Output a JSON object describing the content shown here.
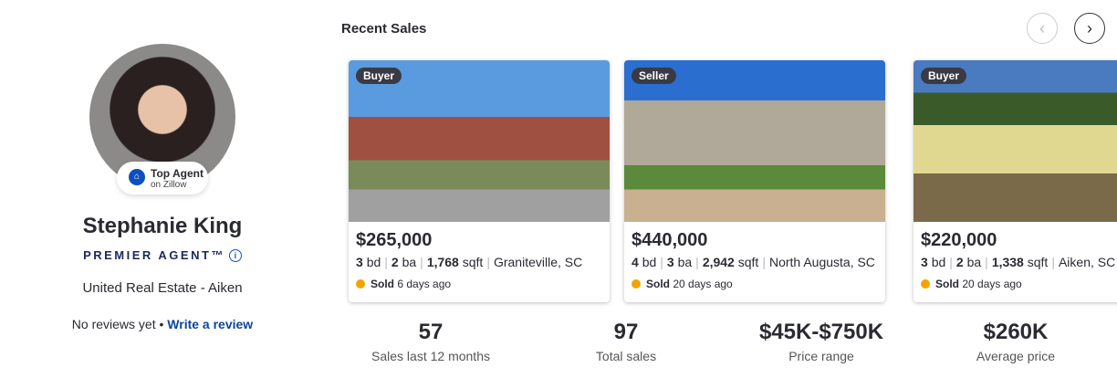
{
  "agent": {
    "badge_title": "Top Agent",
    "badge_sub": "on Zillow",
    "name": "Stephanie King",
    "premier": "PREMIER AGENT™",
    "brokerage": "United Real Estate - Aiken",
    "reviews": "No reviews yet",
    "bullet": " • ",
    "write_review": "Write a review"
  },
  "sales": {
    "title": "Recent Sales",
    "prev": "‹",
    "next": "›",
    "cards": [
      {
        "tag": "Buyer",
        "price": "$265,000",
        "bd": "3",
        "ba": "2",
        "sqft": "1,768",
        "location": "Graniteville, SC",
        "sold": "Sold",
        "when": "6 days ago"
      },
      {
        "tag": "Seller",
        "price": "$440,000",
        "bd": "4",
        "ba": "3",
        "sqft": "2,942",
        "location": "North Augusta, SC",
        "sold": "Sold",
        "when": "20 days ago"
      },
      {
        "tag": "Buyer",
        "price": "$220,000",
        "bd": "3",
        "ba": "2",
        "sqft": "1,338",
        "location": "Aiken, SC",
        "sold": "Sold",
        "when": "20 days ago"
      }
    ]
  },
  "labels": {
    "bd": "bd",
    "ba": "ba",
    "sqft": "sqft"
  },
  "stats": [
    {
      "value": "57",
      "label": "Sales last 12 months"
    },
    {
      "value": "97",
      "label": "Total sales"
    },
    {
      "value": "$45K-$750K",
      "label": "Price range"
    },
    {
      "value": "$260K",
      "label": "Average price"
    }
  ]
}
